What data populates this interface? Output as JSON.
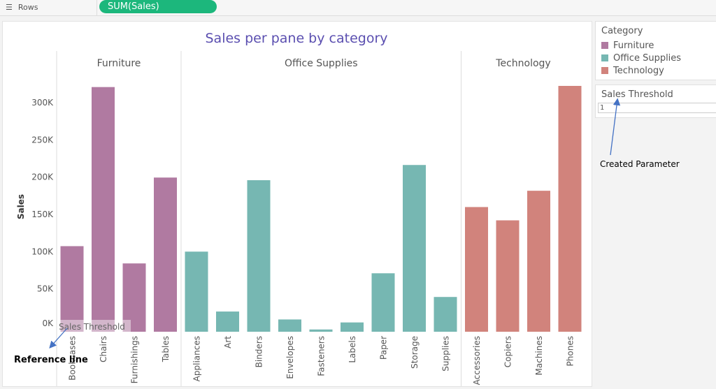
{
  "shelf": {
    "icon": "rows-icon",
    "label": "Rows",
    "pill": "SUM(Sales)"
  },
  "chart_data": {
    "type": "bar",
    "title": "Sales per pane by category",
    "ylabel": "Sales",
    "xlabel": "",
    "ylim": [
      0,
      330000
    ],
    "yticks": [
      0,
      50000,
      100000,
      150000,
      200000,
      250000,
      300000
    ],
    "ytick_labels": [
      "0K",
      "50K",
      "100K",
      "150K",
      "200K",
      "250K",
      "300K"
    ],
    "grid": false,
    "panes": [
      {
        "name": "Furniture",
        "color": "#b07aa1",
        "categories": [
          "Bookcases",
          "Chairs",
          "Furnishings",
          "Tables"
        ],
        "values": [
          114880,
          328449,
          91705,
          206966
        ]
      },
      {
        "name": "Office Supplies",
        "color": "#76b7b2",
        "categories": [
          "Appliances",
          "Art",
          "Binders",
          "Envelopes",
          "Fasteners",
          "Labels",
          "Paper",
          "Storage",
          "Supplies"
        ],
        "values": [
          107532,
          27119,
          203413,
          16476,
          3024,
          12486,
          78479,
          223844,
          46674
        ]
      },
      {
        "name": "Technology",
        "color": "#d1837c",
        "categories": [
          "Accessories",
          "Copiers",
          "Machines",
          "Phones"
        ],
        "values": [
          167380,
          149528,
          189239,
          330007
        ]
      }
    ],
    "reference_line": {
      "label": "Sales Threshold",
      "value": 1
    }
  },
  "legend": {
    "title": "Category",
    "items": [
      {
        "label": "Furniture",
        "color": "#b07aa1"
      },
      {
        "label": "Office Supplies",
        "color": "#76b7b2"
      },
      {
        "label": "Technology",
        "color": "#d1837c"
      }
    ]
  },
  "parameter": {
    "title": "Sales Threshold",
    "value": "1"
  },
  "annotations": {
    "reference": "Reference line",
    "parameter": "Created Parameter"
  }
}
